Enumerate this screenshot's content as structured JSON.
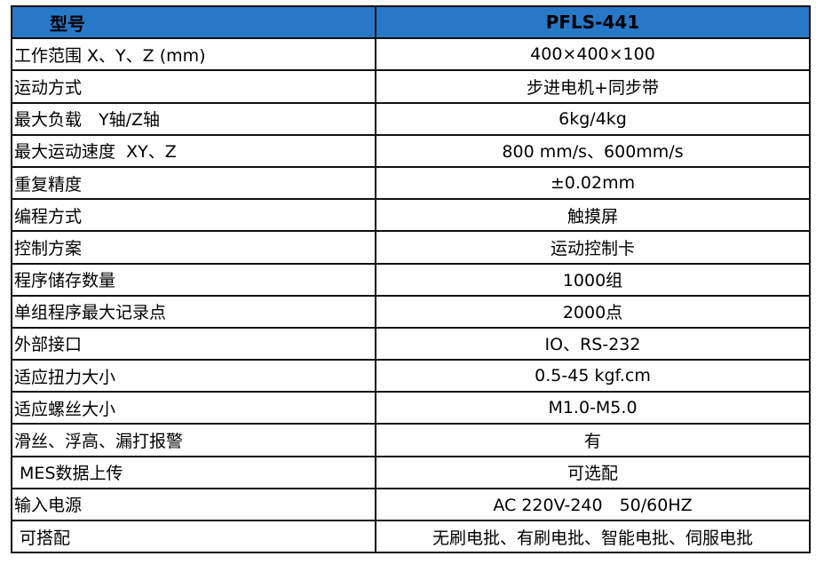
{
  "header": {
    "label": "型号",
    "value": "PFLS-441"
  },
  "header_color": "#2878C8",
  "rows": [
    {
      "label": "工作范围 X、Y、Z (mm)",
      "value": "400×400×100"
    },
    {
      "label": "运动方式",
      "value": "步进电机+同步带"
    },
    {
      "label": "最大负载　Y轴/Z轴",
      "value": "6kg/4kg"
    },
    {
      "label": "最大运动速度  XY、Z",
      "value": "800 mm/s、600mm/s"
    },
    {
      "label": "重复精度",
      "value": "±0.02mm"
    },
    {
      "label": "编程方式",
      "value": "触摸屏"
    },
    {
      "label": "控制方案",
      "value": "运动控制卡"
    },
    {
      "label": "程序储存数量",
      "value": "1000组"
    },
    {
      "label": "单组程序最大记录点",
      "value": "2000点"
    },
    {
      "label": "外部接口",
      "value": "IO、RS-232"
    },
    {
      "label": "适应扭力大小",
      "value": "0.5-45 kgf.cm"
    },
    {
      "label": "适应螺丝大小",
      "value": "M1.0-M5.0"
    },
    {
      "label": "滑丝、浮高、漏打报警",
      "value": "有"
    },
    {
      "label": " MES数据上传",
      "value": "可选配"
    },
    {
      "label": "输入电源",
      "value": "AC 220V-240　50/60HZ"
    },
    {
      "label": " 可搭配",
      "value": "无刷电批、有刷电批、智能电批、伺服电批"
    }
  ]
}
